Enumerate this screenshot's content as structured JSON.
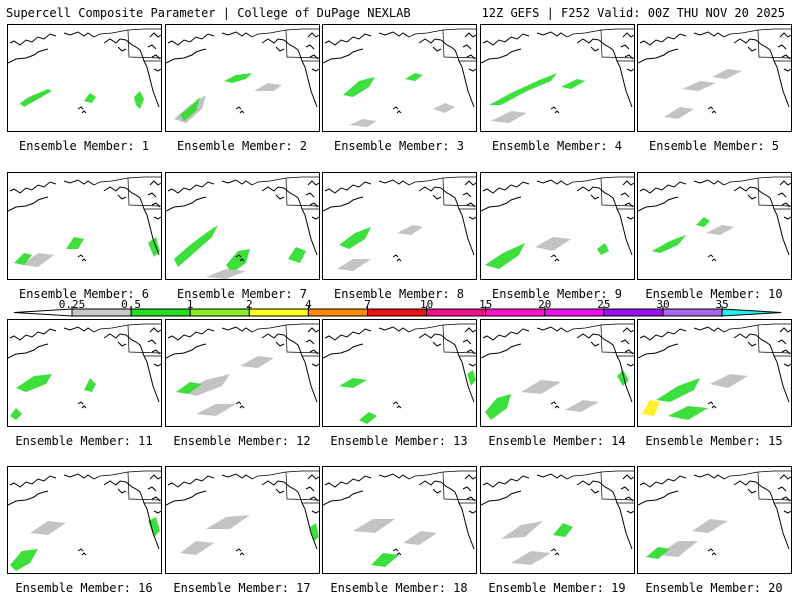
{
  "header": {
    "title_left": "Supercell Composite Parameter | College of DuPage NEXLAB",
    "title_right": "12Z GEFS | F252 Valid: 00Z THU NOV 20 2025"
  },
  "panels": [
    {
      "label": "Ensemble Member: 1"
    },
    {
      "label": "Ensemble Member: 2"
    },
    {
      "label": "Ensemble Member: 3"
    },
    {
      "label": "Ensemble Member: 4"
    },
    {
      "label": "Ensemble Member: 5"
    },
    {
      "label": "Ensemble Member: 6"
    },
    {
      "label": "Ensemble Member: 7"
    },
    {
      "label": "Ensemble Member: 8"
    },
    {
      "label": "Ensemble Member: 9"
    },
    {
      "label": "Ensemble Member: 10"
    },
    {
      "label": "Ensemble Member: 11"
    },
    {
      "label": "Ensemble Member: 12"
    },
    {
      "label": "Ensemble Member: 13"
    },
    {
      "label": "Ensemble Member: 14"
    },
    {
      "label": "Ensemble Member: 15"
    },
    {
      "label": "Ensemble Member: 16"
    },
    {
      "label": "Ensemble Member: 17"
    },
    {
      "label": "Ensemble Member: 18"
    },
    {
      "label": "Ensemble Member: 19"
    },
    {
      "label": "Ensemble Member: 20"
    }
  ],
  "legend": {
    "ticks": [
      "0.25",
      "0.5",
      "1",
      "2",
      "4",
      "7",
      "10",
      "15",
      "20",
      "25",
      "30",
      "35"
    ],
    "colors": [
      "#c8c8c8",
      "#22dd22",
      "#88ee22",
      "#ffff22",
      "#ff8c00",
      "#ee1111",
      "#ee1188",
      "#ff11cc",
      "#ee11ee",
      "#9911ee",
      "#aa66ee",
      "#22eeee"
    ],
    "left_cap_color": "#ffffff"
  },
  "colors": {
    "weak": "#c0c0c0",
    "low": "#33dd33",
    "mid": "#99ee33",
    "high": "#ffee22",
    "coast": "#000000"
  }
}
